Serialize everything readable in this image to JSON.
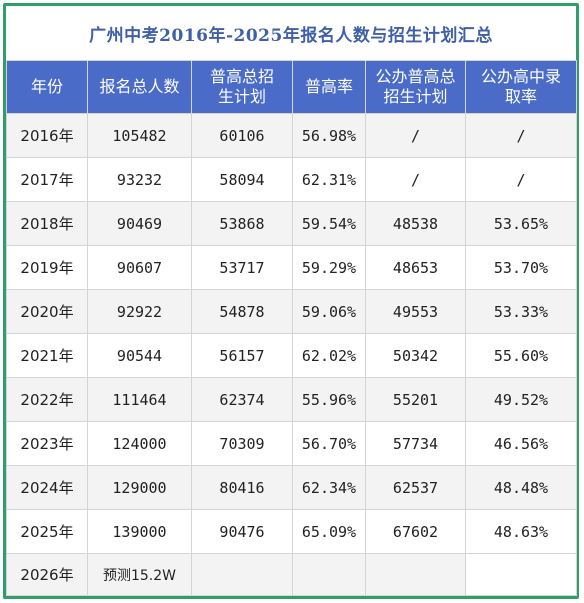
{
  "title": "广州中考2016年-2025年报名人数与招生计划汇总",
  "headers": [
    "年份",
    "报名总人数",
    "普高总招生计划",
    "普高率",
    "公办普高总招生计划",
    "公办高中录取率"
  ],
  "rows": [
    [
      "2016年",
      "105482",
      "60106",
      "56.98%",
      "/",
      "/"
    ],
    [
      "2017年",
      "93232",
      "58094",
      "62.31%",
      "/",
      "/"
    ],
    [
      "2018年",
      "90469",
      "53868",
      "59.54%",
      "48538",
      "53.65%"
    ],
    [
      "2019年",
      "90607",
      "53717",
      "59.29%",
      "48653",
      "53.70%"
    ],
    [
      "2020年",
      "92922",
      "54878",
      "59.06%",
      "49553",
      "53.33%"
    ],
    [
      "2021年",
      "90544",
      "56157",
      "62.02%",
      "50342",
      "55.60%"
    ],
    [
      "2022年",
      "111464",
      "62374",
      "55.96%",
      "55201",
      "49.52%"
    ],
    [
      "2023年",
      "124000",
      "70309",
      "56.70%",
      "57734",
      "46.56%"
    ],
    [
      "2024年",
      "129000",
      "80416",
      "62.34%",
      "62537",
      "48.48%"
    ],
    [
      "2025年",
      "139000",
      "90476",
      "65.09%",
      "67602",
      "48.63%"
    ]
  ],
  "last_row": {
    "year": "2026年",
    "applicants": "预测15.2W"
  }
}
